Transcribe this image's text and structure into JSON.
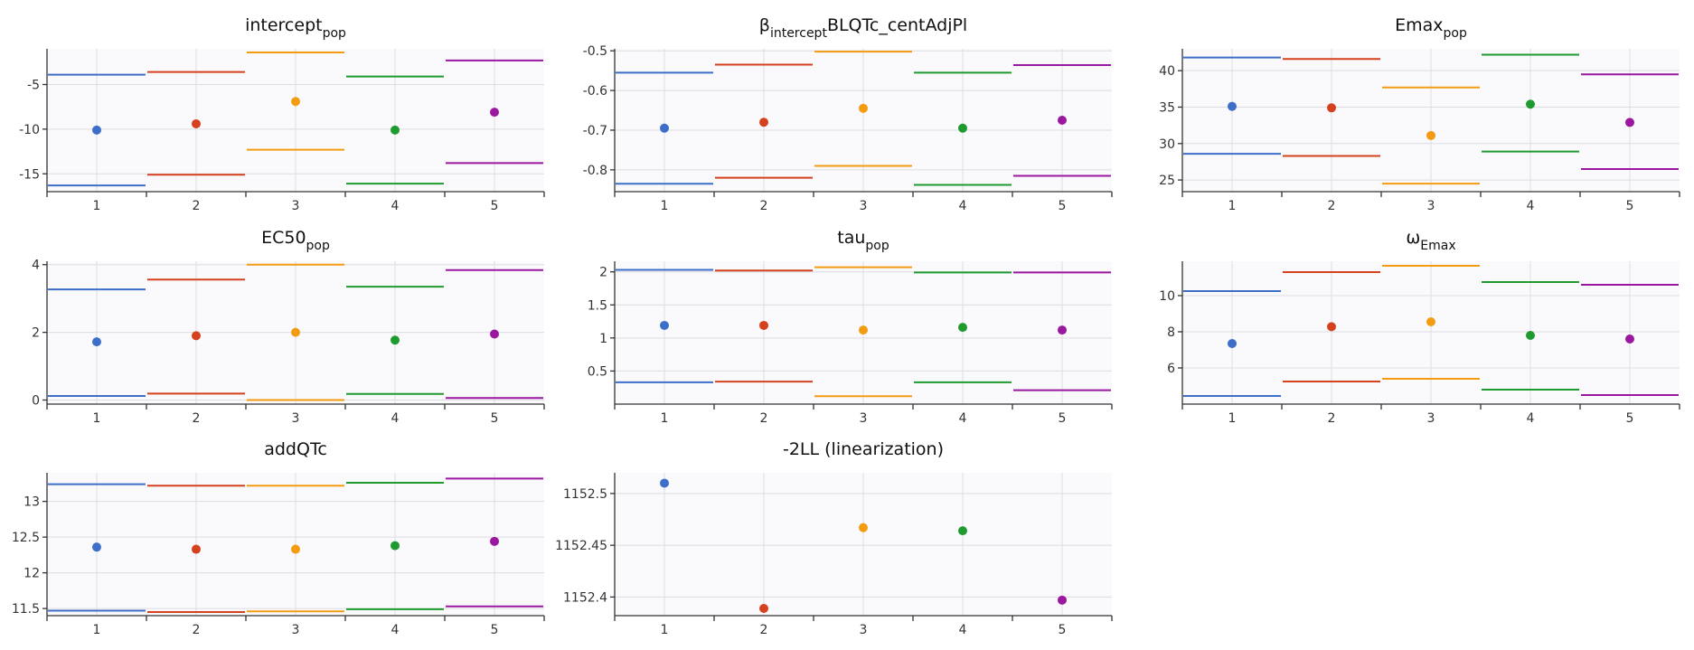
{
  "chart_data": [
    {
      "type": "scatter",
      "title_main": "intercept",
      "title_sub": "pop",
      "title_after": "",
      "x": [
        1,
        2,
        3,
        4,
        5
      ],
      "ylim": [
        -17,
        -1
      ],
      "yticks": [
        -15,
        -10,
        -5
      ],
      "estimates": [
        -10.1,
        -9.4,
        -6.9,
        -10.1,
        -8.1
      ],
      "ci_lower": [
        -16.3,
        -15.1,
        -12.3,
        -16.1,
        -13.8
      ],
      "ci_upper": [
        -3.9,
        -3.6,
        -1.4,
        -4.1,
        -2.3
      ]
    },
    {
      "type": "scatter",
      "title_main": "β",
      "title_sub": "intercept",
      "title_after": "BLQTc_centAdjPl",
      "x": [
        1,
        2,
        3,
        4,
        5
      ],
      "ylim": [
        -0.855,
        -0.495
      ],
      "yticks": [
        -0.8,
        -0.7,
        -0.6,
        -0.5
      ],
      "estimates": [
        -0.695,
        -0.68,
        -0.645,
        -0.695,
        -0.675
      ],
      "ci_lower": [
        -0.835,
        -0.82,
        -0.79,
        -0.838,
        -0.815
      ],
      "ci_upper": [
        -0.555,
        -0.535,
        -0.502,
        -0.555,
        -0.536
      ]
    },
    {
      "type": "scatter",
      "title_main": "Emax",
      "title_sub": "pop",
      "title_after": "",
      "x": [
        1,
        2,
        3,
        4,
        5
      ],
      "ylim": [
        23.4,
        43
      ],
      "yticks": [
        25,
        30,
        35,
        40
      ],
      "estimates": [
        35.1,
        34.9,
        31.1,
        35.4,
        32.9
      ],
      "ci_lower": [
        28.6,
        28.3,
        24.5,
        28.9,
        26.5
      ],
      "ci_upper": [
        41.8,
        41.6,
        37.7,
        42.2,
        39.5
      ]
    },
    {
      "type": "scatter",
      "title_main": "EC50",
      "title_sub": "pop",
      "title_after": "",
      "x": [
        1,
        2,
        3,
        4,
        5
      ],
      "ylim": [
        -0.12,
        4.1
      ],
      "yticks": [
        0,
        2,
        4
      ],
      "estimates": [
        1.72,
        1.9,
        2.0,
        1.77,
        1.95
      ],
      "ci_lower": [
        0.12,
        0.19,
        0.0,
        0.18,
        0.06
      ],
      "ci_upper": [
        3.27,
        3.56,
        4.0,
        3.35,
        3.84
      ]
    },
    {
      "type": "scatter",
      "title_main": "tau",
      "title_sub": "pop",
      "title_after": "",
      "x": [
        1,
        2,
        3,
        4,
        5
      ],
      "ylim": [
        0.0,
        2.16
      ],
      "yticks": [
        0.5,
        1,
        1.5,
        2
      ],
      "estimates": [
        1.19,
        1.19,
        1.12,
        1.16,
        1.12
      ],
      "ci_lower": [
        0.33,
        0.34,
        0.12,
        0.33,
        0.21
      ],
      "ci_upper": [
        2.03,
        2.02,
        2.07,
        1.99,
        1.99
      ]
    },
    {
      "type": "scatter",
      "title_main": "ω",
      "title_sub": "Emax",
      "title_after": "",
      "x": [
        1,
        2,
        3,
        4,
        5
      ],
      "ylim": [
        4.0,
        11.9
      ],
      "yticks": [
        6,
        8,
        10
      ],
      "estimates": [
        7.35,
        8.28,
        8.55,
        7.8,
        7.6
      ],
      "ci_lower": [
        4.45,
        5.25,
        5.4,
        4.8,
        4.5
      ],
      "ci_upper": [
        10.25,
        11.3,
        11.65,
        10.75,
        10.6
      ]
    },
    {
      "type": "scatter",
      "title_main": "addQTc",
      "title_sub": "",
      "title_after": "",
      "x": [
        1,
        2,
        3,
        4,
        5
      ],
      "ylim": [
        11.4,
        13.4
      ],
      "yticks": [
        11.5,
        12,
        12.5,
        13
      ],
      "estimates": [
        12.36,
        12.33,
        12.33,
        12.38,
        12.44
      ],
      "ci_lower": [
        11.47,
        11.45,
        11.46,
        11.49,
        11.53
      ],
      "ci_upper": [
        13.24,
        13.22,
        13.22,
        13.26,
        13.32
      ]
    },
    {
      "type": "scatter",
      "title_main": "-2LL (linearization)",
      "title_sub": "",
      "title_after": "",
      "x": [
        1,
        2,
        3,
        4,
        5
      ],
      "ylim": [
        1152.382,
        1152.52
      ],
      "yticks": [
        1152.4,
        1152.45,
        1152.5
      ],
      "estimates": [
        1152.51,
        1152.389,
        1152.467,
        1152.464,
        1152.397
      ],
      "ci_lower": null,
      "ci_upper": null
    }
  ],
  "series_colors": [
    "#3d6fc8",
    "#d5411e",
    "#f39c12",
    "#1f9a2e",
    "#9a18a0"
  ]
}
